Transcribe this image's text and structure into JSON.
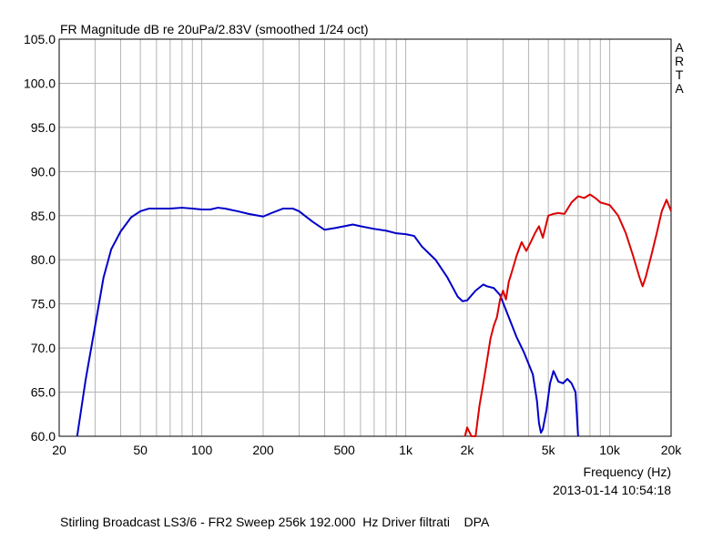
{
  "chart_data": {
    "type": "line",
    "title": "FR Magnitude dB re 20uPa/2.83V (smoothed 1/24 oct)",
    "xlabel": "Frequency (Hz)",
    "ylabel": "",
    "x_scale": "log",
    "xlim": [
      20,
      20000
    ],
    "ylim": [
      60,
      105
    ],
    "grid": true,
    "x_tick_labels": [
      {
        "x": 20,
        "label": "20"
      },
      {
        "x": 50,
        "label": "50"
      },
      {
        "x": 100,
        "label": "100"
      },
      {
        "x": 200,
        "label": "200"
      },
      {
        "x": 500,
        "label": "500"
      },
      {
        "x": 1000,
        "label": "1k"
      },
      {
        "x": 2000,
        "label": "2k"
      },
      {
        "x": 5000,
        "label": "5k"
      },
      {
        "x": 10000,
        "label": "10k"
      },
      {
        "x": 20000,
        "label": "20k"
      }
    ],
    "y_tick_labels": [
      "60.0",
      "65.0",
      "70.0",
      "75.0",
      "80.0",
      "85.0",
      "90.0",
      "95.0",
      "100.0",
      "105.0"
    ],
    "series": [
      {
        "color": "#0000c8",
        "points": [
          [
            24.5,
            60.0
          ],
          [
            27,
            66.5
          ],
          [
            30,
            72.5
          ],
          [
            33,
            78.0
          ],
          [
            36,
            81.2
          ],
          [
            40,
            83.2
          ],
          [
            45,
            84.8
          ],
          [
            50,
            85.5
          ],
          [
            55,
            85.8
          ],
          [
            60,
            85.8
          ],
          [
            70,
            85.8
          ],
          [
            80,
            85.9
          ],
          [
            90,
            85.8
          ],
          [
            100,
            85.7
          ],
          [
            110,
            85.7
          ],
          [
            120,
            85.9
          ],
          [
            130,
            85.8
          ],
          [
            150,
            85.5
          ],
          [
            170,
            85.2
          ],
          [
            200,
            84.9
          ],
          [
            220,
            85.3
          ],
          [
            250,
            85.8
          ],
          [
            280,
            85.8
          ],
          [
            300,
            85.5
          ],
          [
            350,
            84.3
          ],
          [
            400,
            83.4
          ],
          [
            450,
            83.6
          ],
          [
            500,
            83.8
          ],
          [
            550,
            84.0
          ],
          [
            600,
            83.8
          ],
          [
            700,
            83.5
          ],
          [
            800,
            83.3
          ],
          [
            900,
            83.0
          ],
          [
            1000,
            82.9
          ],
          [
            1100,
            82.7
          ],
          [
            1200,
            81.5
          ],
          [
            1400,
            80.0
          ],
          [
            1600,
            78.0
          ],
          [
            1800,
            75.8
          ],
          [
            1900,
            75.3
          ],
          [
            2000,
            75.4
          ],
          [
            2200,
            76.5
          ],
          [
            2400,
            77.2
          ],
          [
            2500,
            77.0
          ],
          [
            2700,
            76.8
          ],
          [
            2900,
            76.0
          ],
          [
            3200,
            73.5
          ],
          [
            3500,
            71.2
          ],
          [
            3800,
            69.5
          ],
          [
            4200,
            67.0
          ],
          [
            4400,
            64.0
          ],
          [
            4500,
            61.5
          ],
          [
            4600,
            60.4
          ],
          [
            4700,
            60.8
          ],
          [
            4900,
            63.0
          ],
          [
            5100,
            66.0
          ],
          [
            5300,
            67.4
          ],
          [
            5600,
            66.2
          ],
          [
            5900,
            66.0
          ],
          [
            6200,
            66.5
          ],
          [
            6500,
            66.0
          ],
          [
            6800,
            65.0
          ],
          [
            7000,
            60.0
          ]
        ]
      },
      {
        "color": "#dc0000",
        "points": [
          [
            1950,
            60.0
          ],
          [
            2000,
            61.0
          ],
          [
            2050,
            60.5
          ],
          [
            2100,
            60.0
          ],
          [
            2200,
            60.0
          ],
          [
            2300,
            63.5
          ],
          [
            2400,
            66.0
          ],
          [
            2500,
            68.5
          ],
          [
            2600,
            71.0
          ],
          [
            2700,
            72.5
          ],
          [
            2800,
            73.5
          ],
          [
            2900,
            75.5
          ],
          [
            3000,
            76.5
          ],
          [
            3100,
            75.5
          ],
          [
            3200,
            77.5
          ],
          [
            3300,
            78.5
          ],
          [
            3500,
            80.5
          ],
          [
            3700,
            82.0
          ],
          [
            3900,
            81.0
          ],
          [
            4100,
            82.0
          ],
          [
            4300,
            83.0
          ],
          [
            4500,
            83.8
          ],
          [
            4700,
            82.5
          ],
          [
            5000,
            85.0
          ],
          [
            5300,
            85.2
          ],
          [
            5600,
            85.3
          ],
          [
            6000,
            85.2
          ],
          [
            6500,
            86.5
          ],
          [
            7000,
            87.2
          ],
          [
            7500,
            87.0
          ],
          [
            8000,
            87.4
          ],
          [
            8500,
            87.0
          ],
          [
            9000,
            86.5
          ],
          [
            10000,
            86.2
          ],
          [
            11000,
            85.0
          ],
          [
            12000,
            83.0
          ],
          [
            13000,
            80.5
          ],
          [
            14000,
            78.0
          ],
          [
            14500,
            77.0
          ],
          [
            15000,
            78.0
          ],
          [
            16000,
            80.5
          ],
          [
            17000,
            83.0
          ],
          [
            18000,
            85.5
          ],
          [
            19000,
            86.8
          ],
          [
            20000,
            85.5
          ]
        ]
      }
    ],
    "watermark": [
      "A",
      "R",
      "T",
      "A"
    ],
    "timestamp": "2013-01-14  10:54:18",
    "caption": "Stirling Broadcast LS3/6 - FR2 Sweep 256k 192.000  Hz Driver filtrati    DPA"
  }
}
